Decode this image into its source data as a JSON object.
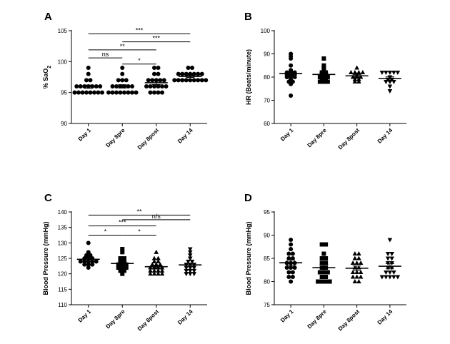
{
  "chart_data": [
    {
      "panel": "A",
      "type": "scatter",
      "categories": [
        "Day 1",
        "Day 8pre",
        "Day 8post",
        "Day 14"
      ],
      "ylabel_main": "% SaO",
      "ylabel_sub": "2",
      "ylim": [
        90,
        105
      ],
      "yticks": [
        "90",
        "95",
        "100",
        "105"
      ],
      "marker": "circle",
      "series": [
        {
          "category": "Day 1",
          "values": [
            99,
            98,
            97,
            97,
            96,
            96,
            96,
            96,
            96,
            96,
            96,
            95,
            95,
            95,
            95,
            95,
            95,
            95,
            95
          ]
        },
        {
          "category": "Day 8pre",
          "values": [
            99,
            98,
            97,
            97,
            97,
            96,
            96,
            96,
            96,
            96,
            96,
            95,
            95,
            95,
            95,
            95,
            95,
            95,
            95
          ]
        },
        {
          "category": "Day 8post",
          "values": [
            99,
            99,
            98,
            98,
            97,
            97,
            97,
            97,
            97,
            96,
            96,
            96,
            96,
            96,
            96,
            95,
            95,
            95,
            95
          ]
        },
        {
          "category": "Day 14",
          "values": [
            99,
            99,
            98,
            98,
            98,
            98,
            98,
            98,
            98,
            97,
            97,
            97,
            97,
            97,
            97,
            97,
            97,
            97
          ]
        }
      ],
      "comparisons": [
        {
          "from": 0,
          "to": 3,
          "y": 104.5,
          "label": "***"
        },
        {
          "from": 1,
          "to": 3,
          "y": 103.2,
          "label": "***"
        },
        {
          "from": 0,
          "to": 2,
          "y": 101.9,
          "label": "**"
        },
        {
          "from": 0,
          "to": 1,
          "y": 100.6,
          "label": "ns"
        },
        {
          "from": 1,
          "to": 2,
          "y": 99.6,
          "label": "*"
        }
      ]
    },
    {
      "panel": "B",
      "type": "scatter",
      "categories": [
        "Day 1",
        "Day 8pre",
        "Day 8post",
        "Day 14"
      ],
      "ylabel_main": "HR (Beats/minute)",
      "ylabel_sub": "",
      "ylim": [
        60,
        100
      ],
      "yticks": [
        "60",
        "70",
        "80",
        "90",
        "100"
      ],
      "marker": "mixed",
      "series": [
        {
          "category": "Day 1",
          "marker": "circle",
          "values": [
            90,
            89,
            88,
            85,
            83,
            82,
            82,
            82,
            81,
            81,
            81,
            80,
            80,
            80,
            79,
            78,
            78,
            77,
            72
          ]
        },
        {
          "category": "Day 8pre",
          "marker": "square",
          "values": [
            88,
            85,
            84,
            83,
            82,
            82,
            81,
            81,
            80,
            80,
            80,
            79,
            79,
            78,
            78,
            78
          ]
        },
        {
          "category": "Day 8post",
          "marker": "triangle-up",
          "values": [
            84,
            82,
            82,
            82,
            82,
            81,
            80,
            80,
            80,
            79,
            79,
            78,
            78
          ]
        },
        {
          "category": "Day 14",
          "marker": "triangle-down",
          "values": [
            82,
            82,
            82,
            82,
            82,
            80,
            79,
            79,
            78,
            78,
            78,
            76,
            74
          ]
        }
      ],
      "comparisons": []
    },
    {
      "panel": "C",
      "type": "scatter",
      "categories": [
        "Day 1",
        "Day 8pre",
        "Day 8post",
        "Day 14"
      ],
      "ylabel_main": "Blood Pressure (mmHg)",
      "ylabel_sub": "",
      "ylim": [
        110,
        140
      ],
      "yticks": [
        "110",
        "115",
        "120",
        "125",
        "130",
        "135",
        "140"
      ],
      "marker": "mixed",
      "series": [
        {
          "category": "Day 1",
          "marker": "circle",
          "values": [
            130,
            127,
            126,
            126,
            125,
            125,
            125,
            124,
            124,
            124,
            124,
            124,
            123,
            123,
            123,
            122
          ]
        },
        {
          "category": "Day 8pre",
          "marker": "square",
          "values": [
            128,
            127,
            125,
            125,
            124,
            124,
            123,
            123,
            123,
            122,
            122,
            122,
            121,
            121,
            120
          ]
        },
        {
          "category": "Day 8post",
          "marker": "triangle-up",
          "values": [
            127,
            125,
            125,
            124,
            124,
            123,
            123,
            123,
            122,
            122,
            122,
            122,
            121,
            121,
            121,
            121,
            120,
            120,
            120,
            120
          ]
        },
        {
          "category": "Day 14",
          "marker": "triangle-down",
          "values": [
            128,
            127,
            126,
            125,
            124,
            124,
            123,
            123,
            123,
            122,
            122,
            122,
            121,
            121,
            121,
            120,
            120,
            120
          ]
        }
      ],
      "comparisons": [
        {
          "from": 0,
          "to": 3,
          "y": 139.0,
          "label": "**"
        },
        {
          "from": 1,
          "to": 3,
          "y": 137.5,
          "label": "n/s"
        },
        {
          "from": 0,
          "to": 2,
          "y": 135.5,
          "label": "***"
        },
        {
          "from": 0,
          "to": 1,
          "y": 132.5,
          "label": "*"
        },
        {
          "from": 1,
          "to": 2,
          "y": 132.5,
          "label": "*"
        }
      ]
    },
    {
      "panel": "D",
      "type": "scatter",
      "categories": [
        "Day 1",
        "Day 8pre",
        "Day 8post",
        "Day 14"
      ],
      "ylabel_main": "Blood Pressure (mmHg)",
      "ylabel_sub": "",
      "ylim": [
        75,
        95
      ],
      "yticks": [
        "75",
        "80",
        "85",
        "90",
        "95"
      ],
      "marker": "mixed",
      "series": [
        {
          "category": "Day 1",
          "marker": "circle",
          "values": [
            89,
            88,
            87,
            86,
            86,
            85,
            85,
            84,
            84,
            84,
            83,
            83,
            83,
            82,
            82,
            81,
            81,
            80
          ]
        },
        {
          "category": "Day 8pre",
          "marker": "square",
          "values": [
            88,
            88,
            86,
            85,
            85,
            84,
            84,
            83,
            83,
            82,
            82,
            82,
            81,
            81,
            80,
            80,
            80,
            80
          ]
        },
        {
          "category": "Day 8post",
          "marker": "triangle-up",
          "values": [
            86,
            86,
            85,
            85,
            84,
            84,
            84,
            83,
            83,
            82,
            82,
            82,
            81,
            81,
            81,
            80,
            80
          ]
        },
        {
          "category": "Day 14",
          "marker": "triangle-down",
          "values": [
            89,
            86,
            86,
            85,
            85,
            84,
            84,
            83,
            83,
            82,
            82,
            82,
            81,
            81,
            81,
            81,
            81
          ]
        }
      ],
      "comparisons": []
    }
  ]
}
